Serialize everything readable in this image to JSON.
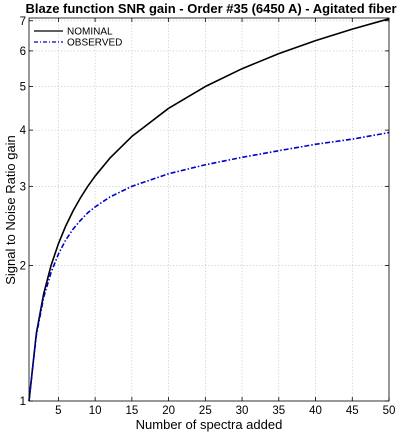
{
  "chart_data": {
    "type": "line",
    "title": "Blaze function SNR gain - Order #35 (6450 A) - Agitated fiber",
    "xlabel": "Number of spectra added",
    "ylabel": "Signal to Noise Ratio gain",
    "xlim": [
      1,
      50
    ],
    "ylim": [
      1,
      7.1
    ],
    "yscale": "log",
    "grid": true,
    "legend_position": "top-left",
    "xticks": [
      5,
      10,
      15,
      20,
      25,
      30,
      35,
      40,
      45,
      50
    ],
    "yticks": [
      1,
      2,
      3,
      4,
      5,
      6,
      7
    ],
    "x": [
      1,
      2,
      3,
      4,
      5,
      6,
      7,
      8,
      9,
      10,
      12,
      15,
      20,
      25,
      30,
      35,
      40,
      45,
      50
    ],
    "series": [
      {
        "name": "NOMINAL",
        "color": "#000000",
        "style": "solid",
        "values": [
          1.0,
          1.414,
          1.732,
          2.0,
          2.236,
          2.449,
          2.646,
          2.828,
          3.0,
          3.162,
          3.464,
          3.873,
          4.472,
          5.0,
          5.477,
          5.916,
          6.325,
          6.708,
          7.071
        ]
      },
      {
        "name": "OBSERVED",
        "color": "#0000cc",
        "style": "dash-dot",
        "values": [
          1.0,
          1.4,
          1.7,
          1.93,
          2.12,
          2.28,
          2.41,
          2.52,
          2.62,
          2.7,
          2.84,
          3.0,
          3.2,
          3.35,
          3.48,
          3.6,
          3.72,
          3.82,
          3.95
        ]
      }
    ]
  }
}
